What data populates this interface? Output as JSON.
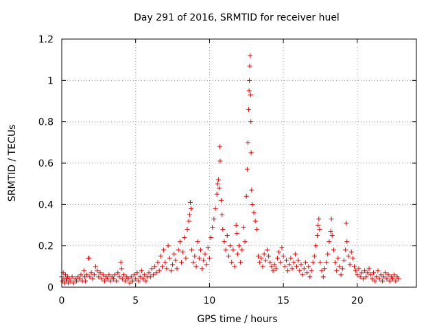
{
  "chart_data": {
    "type": "scatter",
    "title": "Day 291 of 2016, SRMTID for receiver huel",
    "xlabel": "GPS time / hours",
    "ylabel": "SRMTID / TECUs",
    "xlim": [
      0,
      24
    ],
    "ylim": [
      0,
      1.2
    ],
    "xticks": [
      0,
      5,
      10,
      15,
      20
    ],
    "yticks": [
      0,
      0.2,
      0.4,
      0.6,
      0.8,
      1,
      1.2
    ],
    "xtick_labels": [
      "0",
      "5",
      "10",
      "15",
      "20"
    ],
    "ytick_labels": [
      "0",
      "0.2",
      "0.4",
      "0.6",
      "0.8",
      "1",
      "1.2"
    ],
    "grid": true,
    "marker": "plus",
    "color": "#e00000",
    "series": [
      {
        "name": "SRMTID",
        "points": [
          [
            0.0,
            0.05
          ],
          [
            0.05,
            0.03
          ],
          [
            0.1,
            0.07
          ],
          [
            0.15,
            0.04
          ],
          [
            0.2,
            0.02
          ],
          [
            0.25,
            0.06
          ],
          [
            0.3,
            0.04
          ],
          [
            0.35,
            0.03
          ],
          [
            0.4,
            0.05
          ],
          [
            0.45,
            0.02
          ],
          [
            0.5,
            0.04
          ],
          [
            0.6,
            0.03
          ],
          [
            0.7,
            0.05
          ],
          [
            0.8,
            0.02
          ],
          [
            0.9,
            0.04
          ],
          [
            1.0,
            0.03
          ],
          [
            1.1,
            0.05
          ],
          [
            1.2,
            0.04
          ],
          [
            1.3,
            0.06
          ],
          [
            1.4,
            0.03
          ],
          [
            1.5,
            0.08
          ],
          [
            1.55,
            0.05
          ],
          [
            1.6,
            0.03
          ],
          [
            1.7,
            0.06
          ],
          [
            1.8,
            0.14
          ],
          [
            1.85,
            0.14
          ],
          [
            1.9,
            0.05
          ],
          [
            2.0,
            0.07
          ],
          [
            2.1,
            0.04
          ],
          [
            2.2,
            0.06
          ],
          [
            2.3,
            0.1
          ],
          [
            2.4,
            0.08
          ],
          [
            2.5,
            0.05
          ],
          [
            2.6,
            0.07
          ],
          [
            2.7,
            0.04
          ],
          [
            2.8,
            0.06
          ],
          [
            2.9,
            0.03
          ],
          [
            3.0,
            0.05
          ],
          [
            3.1,
            0.04
          ],
          [
            3.2,
            0.06
          ],
          [
            3.3,
            0.03
          ],
          [
            3.4,
            0.05
          ],
          [
            3.5,
            0.04
          ],
          [
            3.6,
            0.06
          ],
          [
            3.7,
            0.03
          ],
          [
            3.8,
            0.07
          ],
          [
            3.9,
            0.05
          ],
          [
            4.0,
            0.12
          ],
          [
            4.05,
            0.09
          ],
          [
            4.1,
            0.04
          ],
          [
            4.2,
            0.06
          ],
          [
            4.3,
            0.03
          ],
          [
            4.4,
            0.05
          ],
          [
            4.5,
            0.04
          ],
          [
            4.6,
            0.02
          ],
          [
            4.7,
            0.05
          ],
          [
            4.8,
            0.03
          ],
          [
            4.9,
            0.06
          ],
          [
            5.0,
            0.04
          ],
          [
            5.1,
            0.07
          ],
          [
            5.2,
            0.03
          ],
          [
            5.3,
            0.05
          ],
          [
            5.4,
            0.08
          ],
          [
            5.5,
            0.04
          ],
          [
            5.6,
            0.06
          ],
          [
            5.7,
            0.03
          ],
          [
            5.8,
            0.05
          ],
          [
            5.9,
            0.07
          ],
          [
            6.0,
            0.05
          ],
          [
            6.1,
            0.09
          ],
          [
            6.2,
            0.06
          ],
          [
            6.3,
            0.1
          ],
          [
            6.4,
            0.07
          ],
          [
            6.5,
            0.12
          ],
          [
            6.6,
            0.08
          ],
          [
            6.7,
            0.15
          ],
          [
            6.8,
            0.1
          ],
          [
            6.9,
            0.18
          ],
          [
            7.0,
            0.12
          ],
          [
            7.1,
            0.09
          ],
          [
            7.2,
            0.2
          ],
          [
            7.3,
            0.14
          ],
          [
            7.4,
            0.08
          ],
          [
            7.5,
            0.11
          ],
          [
            7.6,
            0.16
          ],
          [
            7.7,
            0.13
          ],
          [
            7.8,
            0.09
          ],
          [
            7.9,
            0.18
          ],
          [
            8.0,
            0.22
          ],
          [
            8.1,
            0.12
          ],
          [
            8.2,
            0.17
          ],
          [
            8.3,
            0.24
          ],
          [
            8.4,
            0.14
          ],
          [
            8.5,
            0.28
          ],
          [
            8.6,
            0.32
          ],
          [
            8.65,
            0.35
          ],
          [
            8.7,
            0.41
          ],
          [
            8.75,
            0.38
          ],
          [
            8.8,
            0.18
          ],
          [
            8.9,
            0.12
          ],
          [
            9.0,
            0.15
          ],
          [
            9.1,
            0.1
          ],
          [
            9.2,
            0.22
          ],
          [
            9.3,
            0.14
          ],
          [
            9.4,
            0.18
          ],
          [
            9.5,
            0.09
          ],
          [
            9.6,
            0.13
          ],
          [
            9.7,
            0.16
          ],
          [
            9.8,
            0.11
          ],
          [
            9.9,
            0.19
          ],
          [
            10.0,
            0.14
          ],
          [
            10.1,
            0.24
          ],
          [
            10.2,
            0.29
          ],
          [
            10.3,
            0.33
          ],
          [
            10.4,
            0.38
          ],
          [
            10.5,
            0.45
          ],
          [
            10.55,
            0.5
          ],
          [
            10.6,
            0.52
          ],
          [
            10.65,
            0.48
          ],
          [
            10.7,
            0.68
          ],
          [
            10.72,
            0.61
          ],
          [
            10.8,
            0.42
          ],
          [
            10.85,
            0.35
          ],
          [
            10.9,
            0.28
          ],
          [
            11.0,
            0.22
          ],
          [
            11.1,
            0.18
          ],
          [
            11.2,
            0.25
          ],
          [
            11.3,
            0.15
          ],
          [
            11.4,
            0.2
          ],
          [
            11.5,
            0.12
          ],
          [
            11.6,
            0.18
          ],
          [
            11.7,
            0.1
          ],
          [
            11.8,
            0.3
          ],
          [
            11.85,
            0.26
          ],
          [
            11.9,
            0.16
          ],
          [
            12.0,
            0.2
          ],
          [
            12.1,
            0.12
          ],
          [
            12.2,
            0.18
          ],
          [
            12.3,
            0.29
          ],
          [
            12.4,
            0.22
          ],
          [
            12.5,
            0.44
          ],
          [
            12.55,
            0.57
          ],
          [
            12.6,
            0.7
          ],
          [
            12.65,
            0.86
          ],
          [
            12.68,
            0.95
          ],
          [
            12.7,
            1.0
          ],
          [
            12.72,
            1.07
          ],
          [
            12.75,
            1.12
          ],
          [
            12.78,
            0.93
          ],
          [
            12.8,
            0.8
          ],
          [
            12.82,
            0.65
          ],
          [
            12.85,
            0.47
          ],
          [
            12.9,
            0.4
          ],
          [
            13.0,
            0.36
          ],
          [
            13.1,
            0.32
          ],
          [
            13.2,
            0.28
          ],
          [
            13.3,
            0.15
          ],
          [
            13.4,
            0.12
          ],
          [
            13.5,
            0.14
          ],
          [
            13.6,
            0.1
          ],
          [
            13.7,
            0.16
          ],
          [
            13.8,
            0.13
          ],
          [
            13.9,
            0.18
          ],
          [
            14.0,
            0.15
          ],
          [
            14.1,
            0.12
          ],
          [
            14.2,
            0.1
          ],
          [
            14.3,
            0.08
          ],
          [
            14.4,
            0.11
          ],
          [
            14.5,
            0.09
          ],
          [
            14.6,
            0.14
          ],
          [
            14.7,
            0.17
          ],
          [
            14.8,
            0.12
          ],
          [
            14.9,
            0.19
          ],
          [
            15.0,
            0.15
          ],
          [
            15.1,
            0.1
          ],
          [
            15.2,
            0.13
          ],
          [
            15.3,
            0.08
          ],
          [
            15.4,
            0.11
          ],
          [
            15.5,
            0.14
          ],
          [
            15.6,
            0.09
          ],
          [
            15.7,
            0.12
          ],
          [
            15.8,
            0.16
          ],
          [
            15.9,
            0.1
          ],
          [
            16.0,
            0.13
          ],
          [
            16.1,
            0.08
          ],
          [
            16.2,
            0.11
          ],
          [
            16.3,
            0.06
          ],
          [
            16.4,
            0.09
          ],
          [
            16.5,
            0.12
          ],
          [
            16.6,
            0.07
          ],
          [
            16.7,
            0.1
          ],
          [
            16.8,
            0.05
          ],
          [
            16.9,
            0.08
          ],
          [
            17.0,
            0.12
          ],
          [
            17.1,
            0.15
          ],
          [
            17.2,
            0.2
          ],
          [
            17.3,
            0.25
          ],
          [
            17.35,
            0.3
          ],
          [
            17.4,
            0.33
          ],
          [
            17.45,
            0.28
          ],
          [
            17.5,
            0.12
          ],
          [
            17.6,
            0.08
          ],
          [
            17.7,
            0.05
          ],
          [
            17.8,
            0.09
          ],
          [
            17.9,
            0.12
          ],
          [
            18.0,
            0.16
          ],
          [
            18.1,
            0.22
          ],
          [
            18.2,
            0.27
          ],
          [
            18.25,
            0.33
          ],
          [
            18.3,
            0.25
          ],
          [
            18.4,
            0.18
          ],
          [
            18.5,
            0.12
          ],
          [
            18.6,
            0.08
          ],
          [
            18.7,
            0.14
          ],
          [
            18.8,
            0.1
          ],
          [
            18.9,
            0.06
          ],
          [
            19.0,
            0.09
          ],
          [
            19.1,
            0.13
          ],
          [
            19.2,
            0.18
          ],
          [
            19.25,
            0.31
          ],
          [
            19.3,
            0.22
          ],
          [
            19.4,
            0.15
          ],
          [
            19.5,
            0.11
          ],
          [
            19.6,
            0.17
          ],
          [
            19.7,
            0.14
          ],
          [
            19.8,
            0.1
          ],
          [
            19.9,
            0.08
          ],
          [
            20.0,
            0.06
          ],
          [
            20.1,
            0.09
          ],
          [
            20.2,
            0.05
          ],
          [
            20.3,
            0.07
          ],
          [
            20.4,
            0.04
          ],
          [
            20.5,
            0.08
          ],
          [
            20.6,
            0.05
          ],
          [
            20.7,
            0.07
          ],
          [
            20.8,
            0.09
          ],
          [
            20.9,
            0.06
          ],
          [
            21.0,
            0.04
          ],
          [
            21.1,
            0.07
          ],
          [
            21.2,
            0.03
          ],
          [
            21.3,
            0.05
          ],
          [
            21.4,
            0.08
          ],
          [
            21.5,
            0.04
          ],
          [
            21.6,
            0.06
          ],
          [
            21.7,
            0.03
          ],
          [
            21.8,
            0.05
          ],
          [
            21.9,
            0.07
          ],
          [
            22.0,
            0.04
          ],
          [
            22.1,
            0.06
          ],
          [
            22.2,
            0.03
          ],
          [
            22.3,
            0.05
          ],
          [
            22.4,
            0.04
          ],
          [
            22.5,
            0.06
          ],
          [
            22.6,
            0.03
          ],
          [
            22.7,
            0.05
          ],
          [
            22.8,
            0.04
          ]
        ]
      }
    ]
  }
}
